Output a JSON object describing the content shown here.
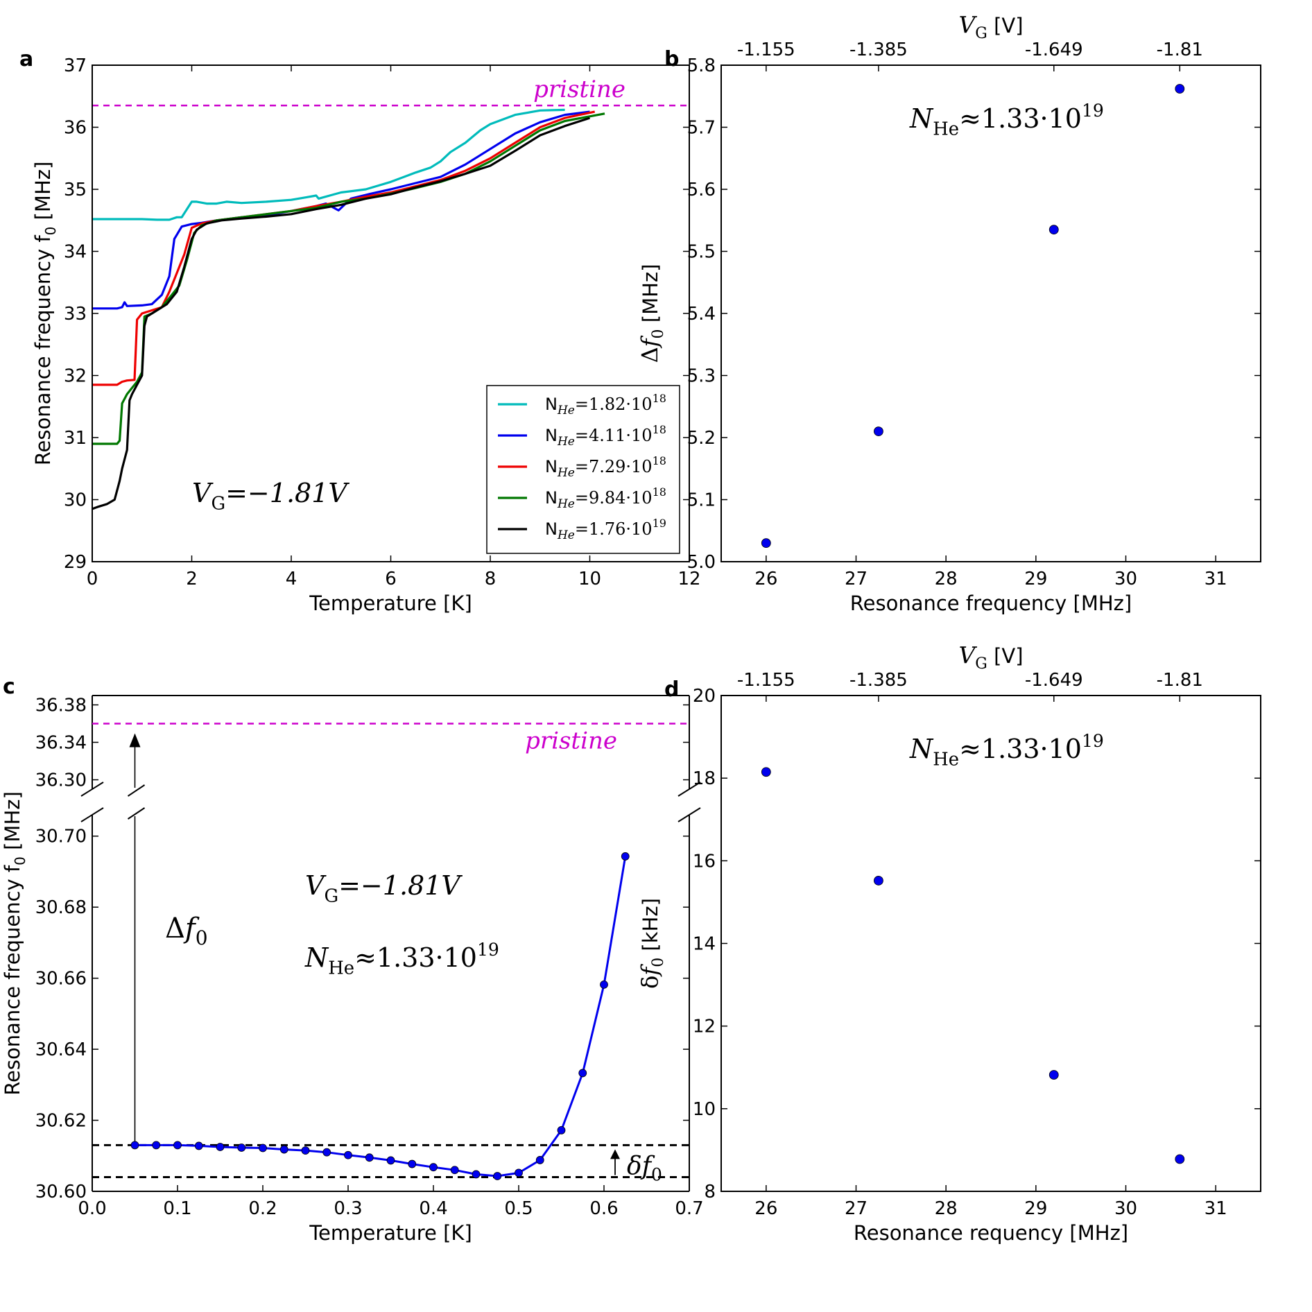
{
  "chart_data": [
    {
      "panel": "a",
      "type": "line",
      "xlabel": "Temperature [K]",
      "ylabel": "Resonance frequency f",
      "ylabel_sub": "0",
      "ylabel_unit": "[MHz]",
      "xlim": [
        0,
        12
      ],
      "ylim": [
        29,
        37
      ],
      "xticks": [
        0,
        2,
        4,
        6,
        8,
        10,
        12
      ],
      "yticks": [
        29,
        30,
        31,
        32,
        33,
        34,
        35,
        36,
        37
      ],
      "pristine": {
        "label": "pristine",
        "value": 36.35,
        "color": "#cc00cc"
      },
      "annotation": {
        "main": "V",
        "sub": "G",
        "rest": "=−1.81V"
      },
      "legend_position": "bottom-right",
      "series": [
        {
          "name": "N",
          "sub": "He",
          "value_text": "=1.82·10",
          "exp": "18",
          "color": "#00bbbb",
          "x": [
            0,
            0.5,
            1,
            1.3,
            1.55,
            1.7,
            1.8,
            2.0,
            2.1,
            2.3,
            2.5,
            2.7,
            3,
            3.5,
            4,
            4.3,
            4.5,
            4.55,
            5,
            5.5,
            6,
            6.5,
            6.8,
            7,
            7.2,
            7.5,
            7.8,
            8,
            8.5,
            9,
            9.5
          ],
          "y": [
            34.52,
            34.52,
            34.52,
            34.51,
            34.51,
            34.55,
            34.55,
            34.8,
            34.8,
            34.77,
            34.77,
            34.8,
            34.78,
            34.8,
            34.83,
            34.87,
            34.9,
            34.85,
            34.95,
            35.0,
            35.12,
            35.27,
            35.35,
            35.45,
            35.6,
            35.75,
            35.95,
            36.05,
            36.2,
            36.27,
            36.28
          ]
        },
        {
          "name": "N",
          "sub": "He",
          "value_text": "=4.11·10",
          "exp": "18",
          "color": "#0000ee",
          "x": [
            0,
            0.5,
            0.6,
            0.65,
            0.7,
            1,
            1.2,
            1.4,
            1.55,
            1.65,
            1.8,
            2,
            2.2,
            2.5,
            3,
            3.5,
            4,
            4.5,
            4.7,
            4.95,
            5.2,
            5.6,
            6,
            6.5,
            7,
            7.5,
            8,
            8.5,
            9,
            9.5,
            10
          ],
          "y": [
            33.08,
            33.08,
            33.1,
            33.18,
            33.12,
            33.13,
            33.15,
            33.3,
            33.6,
            34.2,
            34.4,
            34.44,
            34.46,
            34.5,
            34.55,
            34.58,
            34.65,
            34.73,
            34.77,
            34.66,
            34.85,
            34.93,
            35.0,
            35.1,
            35.2,
            35.4,
            35.65,
            35.9,
            36.08,
            36.2,
            36.25
          ]
        },
        {
          "name": "N",
          "sub": "He",
          "value_text": "=7.29·10",
          "exp": "18",
          "color": "#ee0000",
          "x": [
            0,
            0.5,
            0.6,
            0.7,
            0.85,
            0.9,
            1.0,
            1.2,
            1.4,
            1.55,
            1.7,
            1.85,
            2,
            2.2,
            2.5,
            3,
            3.5,
            4,
            4.5,
            5,
            5.5,
            6,
            6.5,
            7,
            7.5,
            8,
            8.5,
            9,
            9.5,
            10.1
          ],
          "y": [
            31.85,
            31.85,
            31.9,
            31.92,
            31.93,
            32.9,
            33.0,
            33.05,
            33.1,
            33.35,
            33.65,
            33.95,
            34.38,
            34.45,
            34.5,
            34.55,
            34.6,
            34.65,
            34.73,
            34.8,
            34.88,
            34.95,
            35.05,
            35.15,
            35.3,
            35.5,
            35.75,
            36.0,
            36.15,
            36.25
          ]
        },
        {
          "name": "N",
          "sub": "He",
          "value_text": "=9.84·10",
          "exp": "18",
          "color": "#007700",
          "x": [
            0,
            0.5,
            0.55,
            0.6,
            0.7,
            0.8,
            0.9,
            1.0,
            1.05,
            1.2,
            1.4,
            1.6,
            1.75,
            1.9,
            2.05,
            2.2,
            2.5,
            3,
            3.5,
            4,
            4.5,
            5,
            5.5,
            6,
            6.5,
            7,
            7.5,
            8,
            8.5,
            9,
            9.5,
            10.3
          ],
          "y": [
            30.9,
            30.9,
            30.95,
            31.55,
            31.7,
            31.8,
            31.9,
            32.05,
            32.95,
            33.0,
            33.1,
            33.3,
            33.45,
            33.85,
            34.3,
            34.42,
            34.5,
            34.55,
            34.6,
            34.65,
            34.7,
            34.8,
            34.85,
            34.93,
            35.02,
            35.12,
            35.25,
            35.45,
            35.7,
            35.95,
            36.1,
            36.22
          ]
        },
        {
          "name": "N",
          "sub": "He",
          "value_text": "=1.76·10",
          "exp": "19",
          "color": "#000000",
          "x": [
            0,
            0.1,
            0.3,
            0.45,
            0.55,
            0.6,
            0.7,
            0.75,
            0.8,
            0.9,
            1.0,
            1.05,
            1.1,
            1.3,
            1.5,
            1.7,
            1.85,
            2,
            2.1,
            2.3,
            2.6,
            3,
            3.5,
            4,
            4.5,
            5,
            5.5,
            6,
            6.5,
            7,
            7.5,
            8,
            8.5,
            9,
            9.5,
            10
          ],
          "y": [
            29.85,
            29.88,
            29.93,
            30.0,
            30.3,
            30.5,
            30.8,
            31.6,
            31.7,
            31.85,
            32.0,
            32.8,
            32.95,
            33.05,
            33.15,
            33.35,
            33.75,
            34.2,
            34.35,
            34.45,
            34.5,
            34.53,
            34.56,
            34.6,
            34.68,
            34.75,
            34.85,
            34.92,
            35.03,
            35.13,
            35.25,
            35.38,
            35.62,
            35.87,
            36.02,
            36.15
          ]
        }
      ]
    },
    {
      "panel": "b",
      "type": "scatter",
      "xlabel": "Resonance frequency [MHz]",
      "ylabel_main": "Δ",
      "ylabel_var": "f",
      "ylabel_sub": "0",
      "ylabel_unit": "[MHz]",
      "top_xlabel_main": "V",
      "top_xlabel_sub": "G",
      "top_xlabel_unit": "[V]",
      "top_ticks": [
        {
          "x": 26.0,
          "label": "-1.155"
        },
        {
          "x": 27.25,
          "label": "-1.385"
        },
        {
          "x": 29.2,
          "label": "-1.649"
        },
        {
          "x": 30.6,
          "label": "-1.81"
        }
      ],
      "annotation": {
        "main": "N",
        "sub": "He",
        "rest": "≈1.33·10",
        "exp": "19"
      },
      "xlim": [
        25.5,
        31.5
      ],
      "ylim": [
        5.0,
        5.8
      ],
      "xticks": [
        26,
        27,
        28,
        29,
        30,
        31
      ],
      "yticks": [
        5.0,
        5.1,
        5.2,
        5.3,
        5.4,
        5.5,
        5.6,
        5.7,
        5.8
      ],
      "x": [
        26.0,
        27.25,
        29.2,
        30.6
      ],
      "y": [
        5.03,
        5.21,
        5.535,
        5.762
      ]
    },
    {
      "panel": "c",
      "type": "line",
      "xlabel": "Temperature [K]",
      "ylabel": "Resonance frequency f",
      "ylabel_sub": "0",
      "ylabel_unit": "[MHz]",
      "xlim": [
        0.0,
        0.7
      ],
      "xticks": [
        0.0,
        0.1,
        0.2,
        0.3,
        0.4,
        0.5,
        0.6,
        0.7
      ],
      "ylim_lower": [
        30.6,
        30.706
      ],
      "ylim_upper": [
        36.29,
        36.39
      ],
      "yticks_lower": [
        30.6,
        30.62,
        30.64,
        30.66,
        30.68,
        30.7
      ],
      "yticks_upper": [
        36.3,
        36.34,
        36.38
      ],
      "pristine": {
        "label": "pristine",
        "value": 36.36,
        "color": "#cc00cc"
      },
      "ref_lines": [
        30.613,
        30.604
      ],
      "delta_label": {
        "main": "Δ",
        "var": "f",
        "sub": "0"
      },
      "small_delta_label": {
        "main": "δ",
        "var": "f",
        "sub": "0"
      },
      "annotation_vg": {
        "main": "V",
        "sub": "G",
        "rest": "=−1.81V"
      },
      "annotation_nhe": {
        "main": "N",
        "sub": "He",
        "rest": "≈1.33·10",
        "exp": "19"
      },
      "series": [
        {
          "name": "f0",
          "color": "#0000ee",
          "x": [
            0.05,
            0.075,
            0.1,
            0.125,
            0.15,
            0.175,
            0.2,
            0.225,
            0.25,
            0.275,
            0.3,
            0.325,
            0.35,
            0.375,
            0.4,
            0.425,
            0.45,
            0.475,
            0.5,
            0.525,
            0.55,
            0.575,
            0.6,
            0.625
          ],
          "y": [
            30.613,
            30.613,
            30.613,
            30.6128,
            30.6125,
            30.6123,
            30.6122,
            30.6118,
            30.6115,
            30.611,
            30.6102,
            30.6095,
            30.6087,
            30.6077,
            30.6068,
            30.606,
            30.6048,
            30.6043,
            30.6052,
            30.6088,
            30.6172,
            30.6333,
            30.6582,
            30.6943
          ]
        }
      ]
    },
    {
      "panel": "d",
      "type": "scatter",
      "xlabel": "Resonance requency [MHz]",
      "ylabel_main": "δ",
      "ylabel_var": "f",
      "ylabel_sub": "0",
      "ylabel_unit": "[kHz]",
      "top_xlabel_main": "V",
      "top_xlabel_sub": "G",
      "top_xlabel_unit": "[V]",
      "top_ticks": [
        {
          "x": 26.0,
          "label": "-1.155"
        },
        {
          "x": 27.25,
          "label": "-1.385"
        },
        {
          "x": 29.2,
          "label": "-1.649"
        },
        {
          "x": 30.6,
          "label": "-1.81"
        }
      ],
      "annotation": {
        "main": "N",
        "sub": "He",
        "rest": "≈1.33·10",
        "exp": "19"
      },
      "xlim": [
        25.5,
        31.5
      ],
      "ylim": [
        8,
        20
      ],
      "xticks": [
        26,
        27,
        28,
        29,
        30,
        31
      ],
      "yticks": [
        8,
        10,
        12,
        14,
        16,
        18,
        20
      ],
      "x": [
        26.0,
        27.25,
        29.2,
        30.6
      ],
      "y": [
        18.15,
        15.52,
        10.82,
        8.78
      ]
    }
  ],
  "panel_labels": [
    "a",
    "b",
    "c",
    "d"
  ],
  "point_color": "#0000ee"
}
